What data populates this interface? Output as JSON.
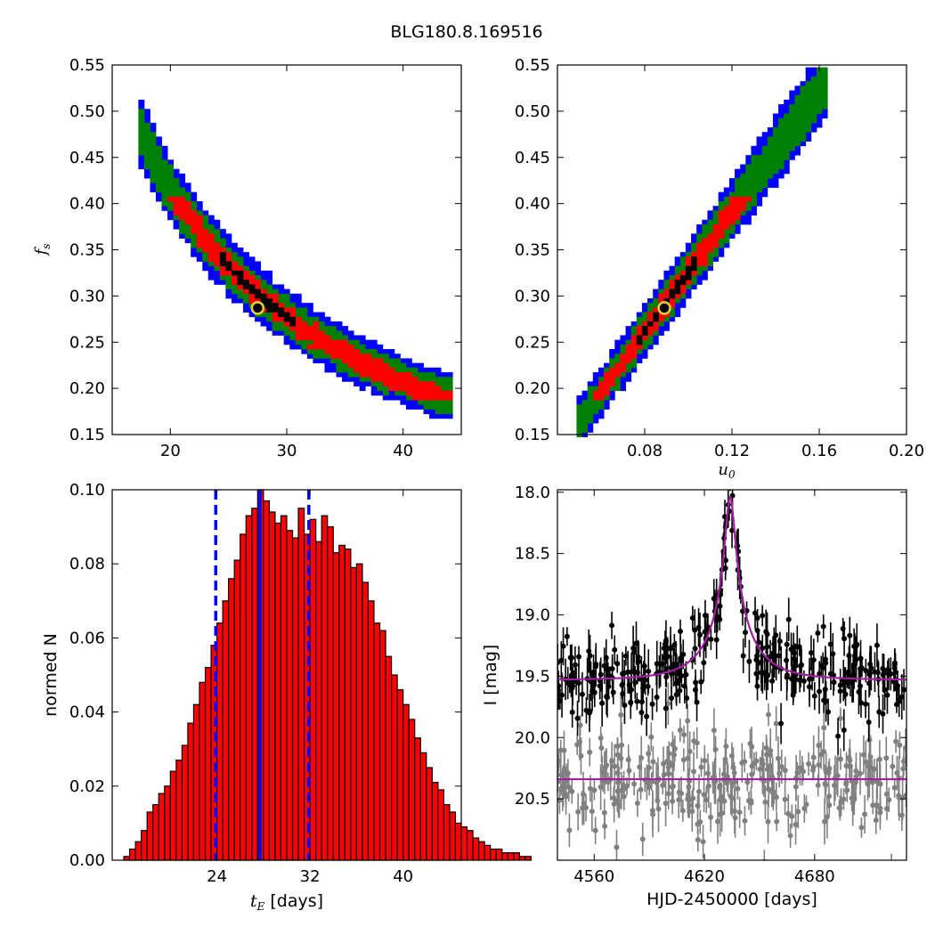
{
  "figure": {
    "title": "BLG180.8.169516"
  },
  "colors": {
    "blue": "#0000ff",
    "green": "#008000",
    "red": "#ff0000",
    "black": "#000000",
    "best_fit_marker": "#e8d23a",
    "histogram_fill": "#ff0000",
    "model_line": "#a020a0",
    "data_points_primary": "#000000",
    "data_points_secondary": "#808080"
  },
  "chart_data": [
    {
      "panel": "top-left",
      "type": "heatmap",
      "xlabel": "",
      "ylabel": "f_s",
      "xlim": [
        15,
        45
      ],
      "ylim": [
        0.15,
        0.55
      ],
      "xticks": [
        20,
        30,
        40
      ],
      "yticks": [
        0.15,
        0.2,
        0.25,
        0.3,
        0.35,
        0.4,
        0.45,
        0.5,
        0.55
      ],
      "ytick_labels": [
        "0.15",
        "0.20",
        "0.25",
        "0.30",
        "0.35",
        "0.40",
        "0.45",
        "0.50",
        "0.55"
      ],
      "relation": "f_s ≈ 8.3 / t_E (inverse correlation)",
      "band_edges": {
        "x": [
          17.5,
          20,
          22,
          24,
          26,
          28,
          30,
          32,
          34,
          36,
          38,
          40,
          42,
          44
        ],
        "y": [
          0.55,
          0.46,
          0.4,
          0.35,
          0.32,
          0.29,
          0.265,
          0.245,
          0.23,
          0.215,
          0.2,
          0.19,
          0.175,
          0.165
        ]
      },
      "levels": [
        "blue",
        "green",
        "red",
        "black"
      ],
      "best_fit": {
        "x": 27.5,
        "y": 0.287
      }
    },
    {
      "panel": "top-right",
      "type": "heatmap",
      "xlabel": "u_0",
      "ylabel": "",
      "xlim": [
        0.04,
        0.2
      ],
      "ylim": [
        0.15,
        0.55
      ],
      "xticks": [
        0.08,
        0.12,
        0.16,
        0.2
      ],
      "xtick_labels": [
        "0.08",
        "0.12",
        "0.16",
        "0.20"
      ],
      "yticks": [
        0.15,
        0.2,
        0.25,
        0.3,
        0.35,
        0.4,
        0.45,
        0.5,
        0.55
      ],
      "ytick_labels": [
        "0.15",
        "0.20",
        "0.25",
        "0.30",
        "0.35",
        "0.40",
        "0.45",
        "0.50",
        "0.55"
      ],
      "relation": "f_s ≈ 3.26 × u_0 (positive correlation)",
      "band_edges": {
        "x": [
          0.05,
          0.07,
          0.09,
          0.11,
          0.13,
          0.15,
          0.165
        ],
        "y": [
          0.165,
          0.23,
          0.29,
          0.355,
          0.42,
          0.48,
          0.545
        ]
      },
      "levels": [
        "blue",
        "green",
        "red",
        "black"
      ],
      "best_fit": {
        "x": 0.089,
        "y": 0.287
      }
    },
    {
      "panel": "bottom-left",
      "type": "bar",
      "xlabel": "[days]",
      "xlabel_symbol": "t_E",
      "ylabel": "normed N",
      "xlim": [
        15,
        45
      ],
      "ylim": [
        0,
        0.1
      ],
      "xticks": [
        24,
        32,
        40
      ],
      "yticks": [
        0.0,
        0.02,
        0.04,
        0.06,
        0.08,
        0.1
      ],
      "ytick_labels": [
        "0.00",
        "0.02",
        "0.04",
        "0.06",
        "0.08",
        "0.10"
      ],
      "bin_start": 16.0,
      "bin_width": 0.5,
      "values": [
        0.001,
        0.003,
        0.005,
        0.008,
        0.013,
        0.015,
        0.018,
        0.02,
        0.024,
        0.027,
        0.031,
        0.037,
        0.042,
        0.048,
        0.052,
        0.058,
        0.064,
        0.07,
        0.076,
        0.081,
        0.088,
        0.093,
        0.095,
        0.1,
        0.097,
        0.094,
        0.091,
        0.093,
        0.089,
        0.087,
        0.095,
        0.088,
        0.092,
        0.086,
        0.093,
        0.09,
        0.083,
        0.085,
        0.084,
        0.079,
        0.08,
        0.075,
        0.07,
        0.064,
        0.062,
        0.055,
        0.05,
        0.046,
        0.042,
        0.038,
        0.033,
        0.029,
        0.025,
        0.021,
        0.019,
        0.015,
        0.013,
        0.01,
        0.009,
        0.008,
        0.006,
        0.005,
        0.004,
        0.003,
        0.003,
        0.002,
        0.002,
        0.002,
        0.001,
        0.001
      ],
      "vlines": [
        {
          "x": 27.7,
          "style": "solid",
          "color": "#0000ff"
        },
        {
          "x": 23.9,
          "style": "dashed",
          "color": "#0000ff"
        },
        {
          "x": 31.9,
          "style": "dashed",
          "color": "#0000ff"
        }
      ]
    },
    {
      "panel": "bottom-right",
      "type": "scatter",
      "xlabel": "HJD-2450000 [days]",
      "ylabel": "I [mag]",
      "xlim": [
        4540,
        4730
      ],
      "ylim": [
        21.0,
        17.98
      ],
      "y_inverted": true,
      "xticks": [
        4560,
        4620,
        4680
      ],
      "yticks": [
        18.0,
        18.5,
        19.0,
        19.5,
        20.0,
        20.5
      ],
      "ytick_labels": [
        "18.0",
        "18.5",
        "19.0",
        "19.5",
        "20.0",
        "20.5"
      ],
      "series": [
        {
          "color": "#000000",
          "baseline_mag": 19.53,
          "peak_mag": 18.07,
          "t0": 4634,
          "tE": 27.5,
          "u0": 0.089,
          "fs": 0.287,
          "n_points": 330,
          "scatter_mag": 0.12
        },
        {
          "color": "#808080",
          "baseline_mag": 20.34,
          "n_points": 320,
          "scatter_mag": 0.15
        }
      ],
      "model_lines": [
        {
          "color": "#a020a0",
          "type": "microlensing",
          "baseline_mag": 19.53,
          "t0": 4634
        },
        {
          "color": "#a020a0",
          "type": "constant",
          "mag": 20.34
        }
      ]
    }
  ]
}
